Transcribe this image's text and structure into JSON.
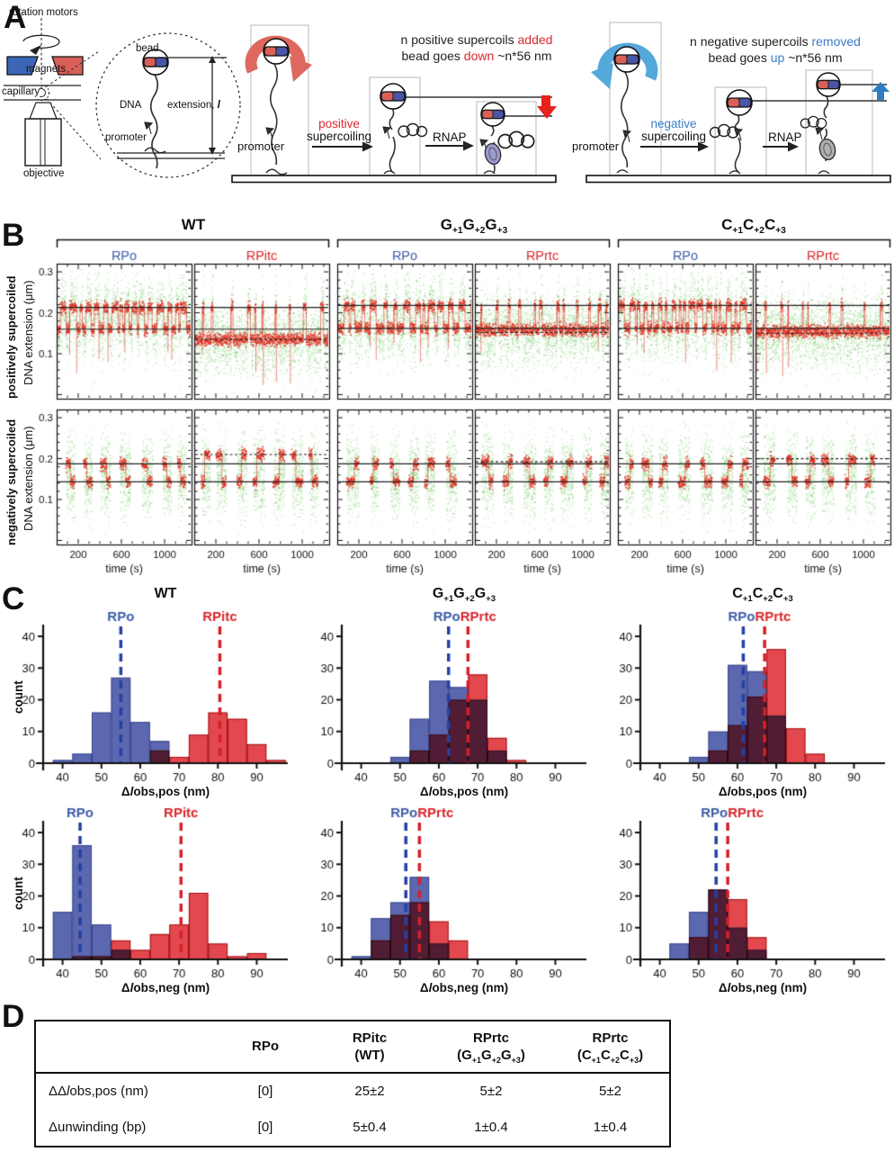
{
  "colors": {
    "blue_label": "#3f5fa9",
    "red_label": "#d9282e",
    "caption_blue": "#3a7bc8",
    "caption_red": "#d9282e",
    "hist_blue": "#5b67ae",
    "hist_red": "#e2484d",
    "hist_blue_edge": "#3a478f",
    "hist_red_edge": "#b5333c",
    "dash_blue": "#2440a5",
    "dash_red": "#d5202a",
    "scatter_green": "rgba(80,190,60,0.30)",
    "trace_red": "#e02b1e",
    "magnet_blue": "#3b66b5",
    "magnet_red": "#d95f57",
    "coil_red": "#de685e",
    "coil_blue": "#55a8da",
    "arrow_red": "#e8211d",
    "arrow_blue": "#2f7ec2",
    "rnap_purple": "#9c9ad0",
    "rnap_gray": "#b0b0b0"
  },
  "constructs": {
    "wt": "WT",
    "g": {
      "b0": "G",
      "s0": "+1",
      "b1": "G",
      "s1": "+2",
      "b2": "G",
      "s2": "+3"
    },
    "c": {
      "b0": "C",
      "s0": "+1",
      "b1": "C",
      "s1": "+2",
      "b2": "C",
      "s2": "+3"
    }
  },
  "panelA": {
    "label": "A",
    "apparatus": {
      "rotation_motors": "rotation motors",
      "magnets": "magnets",
      "capillary": "capillary",
      "objective": "objective"
    },
    "inset": {
      "bead": "bead",
      "dna": "DNA",
      "promoter": "promoter",
      "extension_prefix": "extension, ",
      "extension_l": "l"
    },
    "positive": {
      "promoter": "promoter",
      "step1_word": "positive",
      "step1_rest": "supercoiling",
      "step2": "RNAP",
      "line1_black": "n positive supercoils ",
      "line1_red": "added",
      "line2_black1": "bead goes ",
      "line2_red": "down",
      "line2_black2": " ~n*56 nm"
    },
    "negative": {
      "promoter": "promoter",
      "step1_word": "negative",
      "step1_rest": "supercoiling",
      "step2": "RNAP",
      "line1_black": "n negative supercoils ",
      "line1_blue": "removed",
      "line2_black1": "bead goes ",
      "line2_blue": "up",
      "line2_black2": " ~n*56 nm"
    }
  },
  "panelB": {
    "label": "B",
    "row_top_label": "positively supercoiled",
    "row_bottom_label": "negatively supercoiled",
    "y_axis_label": "DNA extension (μm)",
    "x_axis_label": "time (s)",
    "yticks": [
      0.3,
      0.2,
      0.1
    ],
    "xticks": [
      200,
      600,
      1000
    ],
    "col_labels": [
      {
        "text": "RPo",
        "color": "#3f5fa9"
      },
      {
        "text": "RPitc",
        "color": "#d9282e"
      },
      {
        "text": "RPo",
        "color": "#3f5fa9"
      },
      {
        "text": "RPrtc",
        "color": "#d9282e"
      },
      {
        "text": "RPo",
        "color": "#3f5fa9"
      },
      {
        "text": "RPrtc",
        "color": "#d9282e"
      }
    ],
    "top_plots": [
      {
        "high": 0.213,
        "low": 0.16,
        "meanHigh": 45,
        "meanLow": 30,
        "solid": [
          0.213,
          0.16
        ],
        "dashed": null,
        "seed": 11
      },
      {
        "high": 0.213,
        "low": 0.135,
        "meanHigh": 20,
        "meanLow": 110,
        "solid": [
          0.213,
          0.16
        ],
        "dashed": 0.135,
        "seed": 22
      },
      {
        "high": 0.218,
        "low": 0.162,
        "meanHigh": 40,
        "meanLow": 45,
        "solid": [
          0.218,
          0.162
        ],
        "dashed": null,
        "seed": 33
      },
      {
        "high": 0.218,
        "low": 0.158,
        "meanHigh": 16,
        "meanLow": 95,
        "solid": [
          0.218,
          0.162
        ],
        "dashed": 0.152,
        "seed": 44
      },
      {
        "high": 0.218,
        "low": 0.162,
        "meanHigh": 38,
        "meanLow": 40,
        "solid": [
          0.218,
          0.162
        ],
        "dashed": null,
        "seed": 55
      },
      {
        "high": 0.218,
        "low": 0.155,
        "meanHigh": 12,
        "meanLow": 120,
        "solid": [
          0.218,
          0.162
        ],
        "dashed": 0.15,
        "seed": 66
      }
    ],
    "bottom_plots": [
      {
        "high": 0.187,
        "low": 0.143,
        "solid": [
          0.187,
          0.143
        ],
        "dashed": null,
        "seed": 71
      },
      {
        "high": 0.21,
        "low": 0.143,
        "solid": [
          0.187,
          0.143
        ],
        "dashed": 0.21,
        "seed": 72
      },
      {
        "high": 0.187,
        "low": 0.143,
        "solid": [
          0.187,
          0.143
        ],
        "dashed": null,
        "seed": 73
      },
      {
        "high": 0.192,
        "low": 0.143,
        "solid": [
          0.187,
          0.143
        ],
        "dashed": 0.192,
        "seed": 74
      },
      {
        "high": 0.187,
        "low": 0.143,
        "solid": [
          0.187,
          0.143
        ],
        "dashed": null,
        "seed": 75
      },
      {
        "high": 0.198,
        "low": 0.144,
        "solid": [
          0.187,
          0.143
        ],
        "dashed": 0.2,
        "seed": 76
      }
    ]
  },
  "panelC": {
    "label": "C",
    "ylabel": "count",
    "xlabel": {
      "d": "Δ",
      "l": "l",
      "rest_pos": "obs,pos (nm)",
      "rest_neg": "obs,neg (nm)"
    },
    "yticks": [
      0,
      10,
      20,
      30,
      40
    ],
    "xticks": [
      40,
      50,
      60,
      70,
      80,
      90
    ],
    "bin_start": 37.5,
    "bin_width": 5,
    "top": [
      {
        "blue_label": "RPo",
        "red_label": "RPitc",
        "blue_line": 55,
        "red_line": 80.5,
        "label_mode": "centered",
        "blue": [
          1,
          3,
          16,
          27,
          13,
          7,
          0,
          0,
          0,
          0,
          0,
          0
        ],
        "red": [
          0,
          0,
          0,
          0,
          0,
          4,
          2,
          9,
          16,
          14,
          6,
          1
        ]
      },
      {
        "blue_label": "RPo",
        "red_label": "RPrtc",
        "blue_line": 62.5,
        "red_line": 67.5,
        "label_mode": "split",
        "blue": [
          0,
          0,
          2,
          14,
          26,
          24,
          20,
          4,
          0,
          0,
          0,
          0
        ],
        "red": [
          0,
          0,
          0,
          4,
          9,
          20,
          28,
          8,
          1,
          0,
          0,
          0
        ]
      },
      {
        "blue_label": "RPo",
        "red_label": "RPrtc",
        "blue_line": 61.5,
        "red_line": 67,
        "label_mode": "split",
        "blue": [
          0,
          0,
          2,
          10,
          31,
          29,
          15,
          0,
          0,
          0,
          0,
          0
        ],
        "red": [
          0,
          0,
          0,
          4,
          12,
          21,
          36,
          11,
          3,
          0,
          0,
          0
        ]
      }
    ],
    "bottom": [
      {
        "blue_label": "RPo",
        "red_label": "RPitc",
        "blue_line": 44.5,
        "red_line": 70.5,
        "label_mode": "centered",
        "blue": [
          15,
          36,
          11,
          3,
          0,
          0,
          0,
          0,
          0,
          0,
          0,
          0
        ],
        "red": [
          0,
          1,
          1,
          6,
          3,
          8,
          11,
          21,
          5,
          1,
          2,
          0
        ]
      },
      {
        "blue_label": "RPo",
        "red_label": "RPrtc",
        "blue_line": 51.5,
        "red_line": 55,
        "label_mode": "split",
        "blue": [
          1,
          13,
          18,
          26,
          5,
          0,
          0,
          0,
          0,
          0,
          0,
          0
        ],
        "red": [
          0,
          6,
          14,
          18,
          12,
          6,
          0,
          0,
          0,
          0,
          0,
          0
        ]
      },
      {
        "blue_label": "RPo",
        "red_label": "RPrtc",
        "blue_line": 54.5,
        "red_line": 57.5,
        "label_mode": "split",
        "blue": [
          0,
          5,
          15,
          22,
          10,
          3,
          0,
          0,
          0,
          0,
          0,
          0
        ],
        "red": [
          0,
          0,
          7,
          22,
          19,
          7,
          0,
          0,
          0,
          0,
          0,
          0
        ]
      }
    ]
  },
  "panelD": {
    "label": "D",
    "header": {
      "c1": "RPo",
      "c2l1": "RPitc",
      "c2l2": "(WT)",
      "c3l1": "RPrtc",
      "c3b0": "(G",
      "c3s0": "+1",
      "c3b1": "G",
      "c3s1": "+2",
      "c3b2": "G",
      "c3s2": "+3",
      "c3b3": ")",
      "c4l1": "RPrtc",
      "c4b0": "(C",
      "c4s0": "+1",
      "c4b1": "C",
      "c4s1": "+2",
      "c4b2": "C",
      "c4s2": "+3",
      "c4b3": ")"
    },
    "row1": {
      "l0": "ΔΔ",
      "l1": "l",
      "l2": "obs,pos (nm)",
      "v1": "[0]",
      "v2": "25±2",
      "v3": "5±2",
      "v4": "5±2"
    },
    "row2": {
      "label": "Δunwinding (bp)",
      "v1": "[0]",
      "v2": "5±0.4",
      "v3": "1±0.4",
      "v4": "1±0.4"
    }
  }
}
